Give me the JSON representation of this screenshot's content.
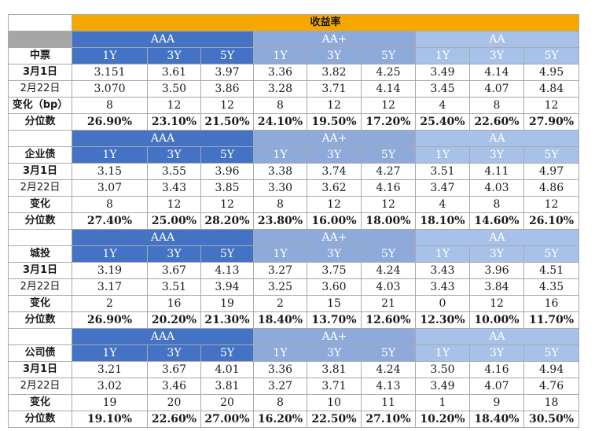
{
  "title": "收益率",
  "groups": [
    "AAA",
    "AA+",
    "AA"
  ],
  "tenors": [
    "1Y",
    "3Y",
    "5Y"
  ],
  "sections": [
    {
      "name": "中票",
      "rows": [
        {
          "label": "3月1日",
          "values": [
            "3.151",
            "3.61",
            "3.97",
            "3.36",
            "3.82",
            "4.25",
            "3.49",
            "4.14",
            "4.95"
          ]
        },
        {
          "label": "2月22日",
          "values": [
            "3.070",
            "3.50",
            "3.86",
            "3.28",
            "3.71",
            "4.14",
            "3.45",
            "4.07",
            "4.84"
          ]
        },
        {
          "label": "变化（bp）",
          "values": [
            "8",
            "12",
            "12",
            "8",
            "12",
            "12",
            "4",
            "8",
            "12"
          ]
        },
        {
          "label": "分位数",
          "values": [
            "26.90%",
            "23.10%",
            "21.50%",
            "24.10%",
            "19.50%",
            "17.20%",
            "25.40%",
            "22.60%",
            "27.90%"
          ]
        }
      ]
    },
    {
      "name": "企业债",
      "rows": [
        {
          "label": "3月1日",
          "values": [
            "3.15",
            "3.55",
            "3.96",
            "3.38",
            "3.74",
            "4.27",
            "3.51",
            "4.11",
            "4.97"
          ]
        },
        {
          "label": "2月22日",
          "values": [
            "3.07",
            "3.43",
            "3.85",
            "3.30",
            "3.62",
            "4.16",
            "3.47",
            "4.03",
            "4.86"
          ]
        },
        {
          "label": "变化",
          "values": [
            "8",
            "12",
            "12",
            "8",
            "12",
            "12",
            "4",
            "8",
            "12"
          ]
        },
        {
          "label": "分位数",
          "values": [
            "27.40%",
            "25.00%",
            "28.20%",
            "23.80%",
            "16.00%",
            "18.00%",
            "18.10%",
            "14.60%",
            "26.10%"
          ]
        }
      ]
    },
    {
      "name": "城投",
      "rows": [
        {
          "label": "3月1日",
          "values": [
            "3.19",
            "3.67",
            "4.13",
            "3.27",
            "3.75",
            "4.24",
            "3.43",
            "3.96",
            "4.51"
          ]
        },
        {
          "label": "2月22日",
          "values": [
            "3.17",
            "3.51",
            "3.94",
            "3.25",
            "3.60",
            "4.03",
            "3.43",
            "3.84",
            "4.35"
          ]
        },
        {
          "label": "变化",
          "values": [
            "2",
            "16",
            "19",
            "2",
            "15",
            "21",
            "0",
            "12",
            "16"
          ]
        },
        {
          "label": "分位数",
          "values": [
            "26.90%",
            "20.20%",
            "21.30%",
            "18.40%",
            "13.70%",
            "12.60%",
            "12.30%",
            "10.00%",
            "11.70%"
          ]
        }
      ]
    },
    {
      "name": "公司债",
      "rows": [
        {
          "label": "3月1日",
          "values": [
            "3.21",
            "3.67",
            "4.01",
            "3.36",
            "3.81",
            "4.24",
            "3.50",
            "4.16",
            "4.94"
          ]
        },
        {
          "label": "2月22日",
          "values": [
            "3.02",
            "3.46",
            "3.81",
            "3.27",
            "3.71",
            "4.13",
            "3.49",
            "4.07",
            "4.76"
          ]
        },
        {
          "label": "变化",
          "values": [
            "19",
            "20",
            "20",
            "8",
            "10",
            "11",
            "1",
            "9",
            "18"
          ]
        },
        {
          "label": "分位数",
          "values": [
            "19.10%",
            "22.60%",
            "27.00%",
            "16.20%",
            "22.50%",
            "27.10%",
            "10.20%",
            "18.40%",
            "30.50%"
          ]
        }
      ]
    }
  ],
  "colors": {
    "title_bg": "#f7a800",
    "aaa_bg": "#4472c4",
    "aa_plus_bg": "#8eaadb",
    "aa_bg": "#a8c1e8",
    "corner_grey": "#a6a6a6"
  }
}
